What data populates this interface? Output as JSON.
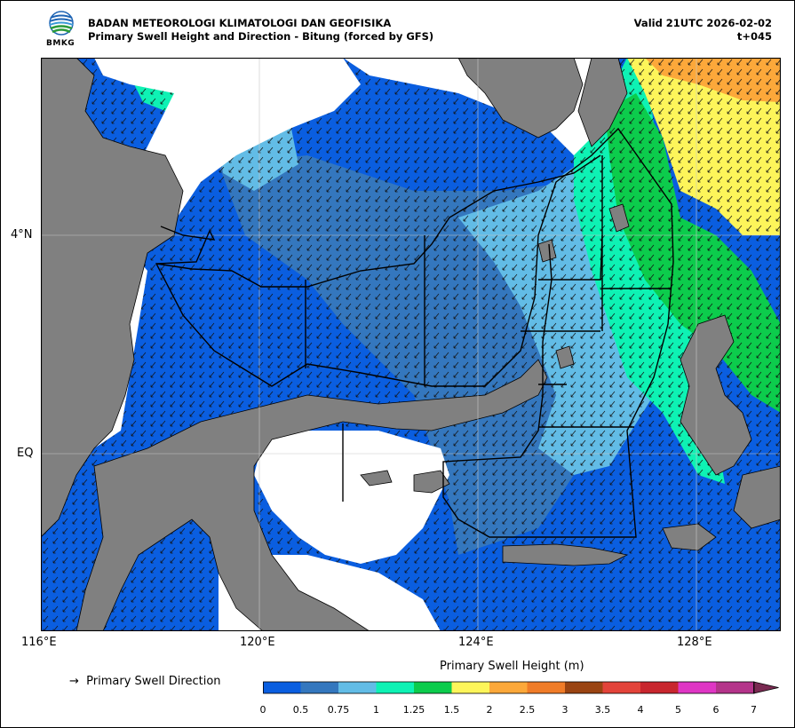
{
  "header": {
    "org": "BADAN METEOROLOGI KLIMATOLOGI DAN GEOFISIKA",
    "subtitle": "Primary Swell Height and Direction - Bitung (forced by GFS)",
    "valid": "Valid 21UTC 2026-02-02",
    "lead": "t+045",
    "logo_text": "BMKG"
  },
  "axes": {
    "x_ticks": [
      "116°E",
      "120°E",
      "124°E",
      "128°E"
    ],
    "y_ticks": [
      "4°N",
      "EQ"
    ]
  },
  "legend": {
    "arrow_symbol": "→",
    "arrow_label": "Primary Swell Direction",
    "colorbar_title": "Primary Swell Height (m)",
    "colorbar_labels": [
      "0",
      "0.5",
      "0.75",
      "1",
      "1.25",
      "1.5",
      "2",
      "2.5",
      "3",
      "3.5",
      "4",
      "5",
      "6",
      "7"
    ],
    "colors": [
      "#0a5ee0",
      "#3477be",
      "#62bce6",
      "#0ef2b4",
      "#0ccc4c",
      "#fdf55a",
      "#fca83a",
      "#f07c28",
      "#9a4412",
      "#e3433a",
      "#c8262e",
      "#df36c4",
      "#b4348a",
      "#7a2a52"
    ]
  },
  "map_colors": {
    "land": "#808080",
    "no_data": "#ffffff",
    "grid": "#c8c8c8"
  }
}
